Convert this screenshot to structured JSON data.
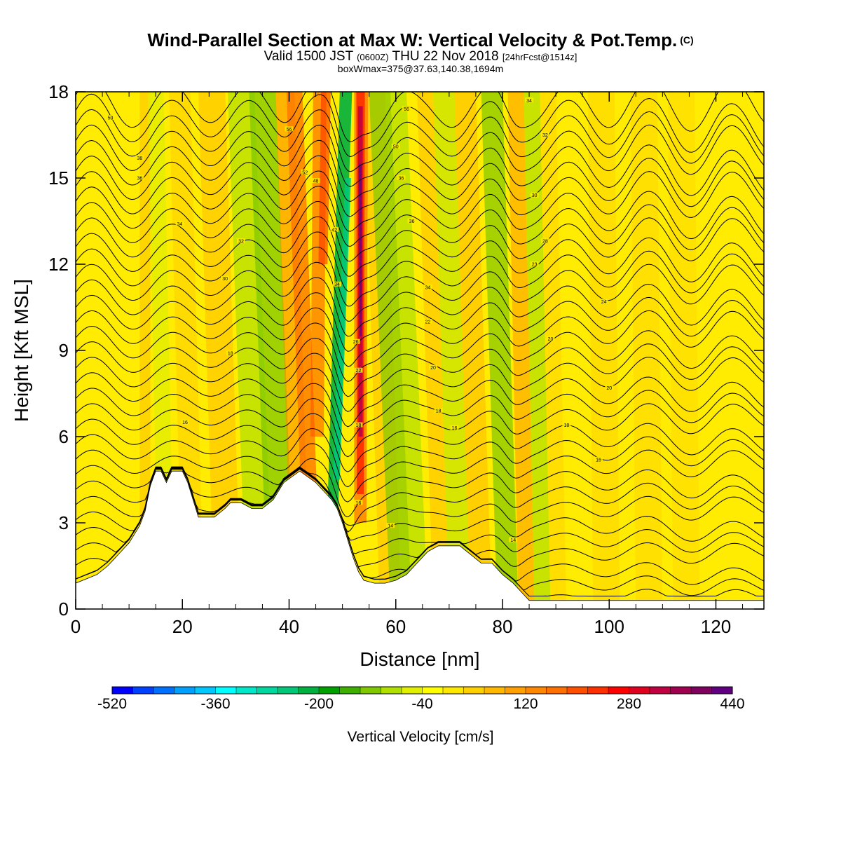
{
  "header": {
    "title": "Wind-Parallel Section at Max W: Vertical Velocity & Pot.Temp.",
    "title_mark": "(C)",
    "subtitle_a": "Valid 1500 JST",
    "subtitle_b": "(0600Z)",
    "subtitle_c": "THU 22 Nov 2018",
    "subtitle_d": "[24hrFcst@1514z]",
    "subtitle2": "boxWmax=375@37.63,140.38,1694m"
  },
  "chart_data": {
    "type": "heatmap",
    "xlabel": "Distance [nm]",
    "ylabel": "Height [Kft MSL]",
    "xlim": [
      0,
      129
    ],
    "ylim": [
      0,
      18
    ],
    "xticks": [
      0,
      20,
      40,
      60,
      80,
      100,
      120
    ],
    "yticks": [
      0,
      3,
      6,
      9,
      12,
      15,
      18
    ],
    "terrain": {
      "description_units": "distance nm vs height kft",
      "x": [
        0,
        4,
        6,
        7,
        8,
        9,
        10,
        11,
        12,
        13,
        14,
        15,
        16,
        17,
        18,
        19,
        20,
        21,
        22,
        23,
        24,
        26,
        28,
        29,
        31,
        33,
        35,
        37,
        39,
        42,
        45,
        47,
        48,
        49,
        50,
        51,
        52,
        53,
        54,
        56,
        58,
        60,
        62,
        64,
        66,
        68,
        70,
        72,
        74,
        76,
        78,
        80,
        82,
        84,
        85,
        86,
        129
      ],
      "y": [
        0.9,
        1.2,
        1.5,
        1.7,
        1.9,
        2.1,
        2.3,
        2.6,
        2.9,
        3.4,
        4.3,
        4.8,
        4.8,
        4.4,
        4.8,
        4.8,
        4.8,
        4.4,
        3.8,
        3.2,
        3.2,
        3.2,
        3.5,
        3.7,
        3.7,
        3.5,
        3.5,
        3.8,
        4.4,
        4.8,
        4.4,
        4.0,
        3.8,
        3.5,
        3.0,
        2.4,
        1.8,
        1.3,
        1.0,
        0.9,
        0.9,
        1.0,
        1.2,
        1.6,
        2.0,
        2.2,
        2.2,
        2.2,
        1.9,
        1.6,
        1.6,
        1.2,
        0.9,
        0.5,
        0.3,
        0.3,
        0.3
      ]
    },
    "w_features": [
      {
        "kind": "downdraft",
        "x_low": 48.5,
        "x_high": 56,
        "value": -260
      },
      {
        "kind": "updraft",
        "x_low": 51.5,
        "x_high": 54,
        "value": 440
      },
      {
        "kind": "updraft",
        "x_low": 44,
        "x_high": 51,
        "value": 200
      },
      {
        "kind": "downdraft",
        "x_low": 34,
        "x_high": 43,
        "value": -120
      },
      {
        "kind": "downdraft",
        "x_low": 57,
        "x_high": 66,
        "value": -100
      },
      {
        "kind": "downdraft",
        "x_low": 62,
        "x_high": 74,
        "value": -80
      },
      {
        "kind": "downdraft",
        "x_low": 81,
        "x_high": 85,
        "value": -120
      },
      {
        "kind": "downdraft",
        "x_low": 88,
        "x_high": 89,
        "value": -80
      },
      {
        "kind": "updraft",
        "x_low": 40,
        "x_high": 43,
        "value": 100
      },
      {
        "kind": "updraft",
        "x_low": 26,
        "x_high": 31,
        "value": 60
      },
      {
        "kind": "updraft",
        "x_low": 11,
        "x_high": 13,
        "value": 60
      },
      {
        "kind": "downdraft",
        "x_low": 15,
        "x_high": 20,
        "value": -60
      }
    ],
    "theta_labels": [
      {
        "x": 6.5,
        "y": 17.1,
        "text": "50"
      },
      {
        "x": 12,
        "y": 15.7,
        "text": "38"
      },
      {
        "x": 12,
        "y": 15.0,
        "text": "36"
      },
      {
        "x": 19.5,
        "y": 13.4,
        "text": "34"
      },
      {
        "x": 31,
        "y": 12.8,
        "text": "32"
      },
      {
        "x": 28,
        "y": 11.5,
        "text": "30"
      },
      {
        "x": 29,
        "y": 8.9,
        "text": "18"
      },
      {
        "x": 20.5,
        "y": 6.5,
        "text": "16"
      },
      {
        "x": 40,
        "y": 16.7,
        "text": "56"
      },
      {
        "x": 43,
        "y": 15.2,
        "text": "52"
      },
      {
        "x": 45,
        "y": 14.9,
        "text": "48"
      },
      {
        "x": 48.5,
        "y": 13.2,
        "text": "42"
      },
      {
        "x": 49,
        "y": 11.3,
        "text": "34"
      },
      {
        "x": 52.5,
        "y": 9.3,
        "text": "26"
      },
      {
        "x": 53,
        "y": 8.3,
        "text": "22"
      },
      {
        "x": 53,
        "y": 6.4,
        "text": "18"
      },
      {
        "x": 53,
        "y": 3.7,
        "text": "16"
      },
      {
        "x": 59,
        "y": 2.9,
        "text": "14"
      },
      {
        "x": 62,
        "y": 17.4,
        "text": "56"
      },
      {
        "x": 60,
        "y": 16.1,
        "text": "50"
      },
      {
        "x": 61,
        "y": 15.0,
        "text": "36"
      },
      {
        "x": 63,
        "y": 13.5,
        "text": "36"
      },
      {
        "x": 66,
        "y": 11.2,
        "text": "34"
      },
      {
        "x": 66,
        "y": 10.0,
        "text": "22"
      },
      {
        "x": 67,
        "y": 8.4,
        "text": "20"
      },
      {
        "x": 68,
        "y": 6.9,
        "text": "18"
      },
      {
        "x": 71,
        "y": 6.3,
        "text": "16"
      },
      {
        "x": 85,
        "y": 17.7,
        "text": "34"
      },
      {
        "x": 88,
        "y": 16.5,
        "text": "32"
      },
      {
        "x": 86,
        "y": 14.4,
        "text": "30"
      },
      {
        "x": 88,
        "y": 12.8,
        "text": "28"
      },
      {
        "x": 86,
        "y": 12.0,
        "text": "23"
      },
      {
        "x": 99,
        "y": 10.7,
        "text": "24"
      },
      {
        "x": 89,
        "y": 9.4,
        "text": "20"
      },
      {
        "x": 100,
        "y": 7.7,
        "text": "20"
      },
      {
        "x": 92,
        "y": 6.4,
        "text": "18"
      },
      {
        "x": 98,
        "y": 5.2,
        "text": "16"
      },
      {
        "x": 82,
        "y": 2.4,
        "text": "14"
      }
    ]
  },
  "colorbar": {
    "title": "Vertical Velocity [cm/s]",
    "tick_labels": [
      "-520",
      "-360",
      "-200",
      "-40",
      "120",
      "280",
      "440"
    ],
    "colors": [
      "#0000ff",
      "#0040ff",
      "#0070ff",
      "#00a0ff",
      "#00c8ff",
      "#00ffff",
      "#00e8c8",
      "#00d8a0",
      "#00c878",
      "#00b040",
      "#00a000",
      "#40b000",
      "#80c800",
      "#b0e000",
      "#e0f000",
      "#ffff00",
      "#ffe800",
      "#ffd000",
      "#ffb800",
      "#ffa000",
      "#ff8800",
      "#ff7000",
      "#ff5000",
      "#ff3000",
      "#ff0000",
      "#e00020",
      "#c00040",
      "#a00050",
      "#800060",
      "#600080"
    ]
  }
}
